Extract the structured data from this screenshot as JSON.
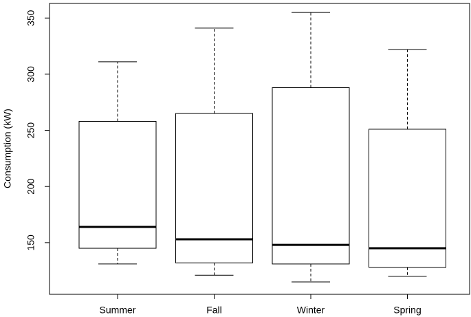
{
  "chart_data": {
    "type": "box",
    "y_label": "Consumption (kW)",
    "categories": [
      "Summer",
      "Fall",
      "Winter",
      "Spring"
    ],
    "min": [
      131,
      121,
      115,
      120
    ],
    "q1": [
      145,
      132,
      131,
      128
    ],
    "median": [
      164,
      153,
      148,
      145
    ],
    "q3": [
      258,
      265,
      288,
      251
    ],
    "max": [
      311,
      341,
      355,
      322
    ],
    "color": "#000000",
    "ylim": [
      104,
      363
    ],
    "yticks": [
      150,
      200,
      250,
      300,
      350
    ]
  }
}
